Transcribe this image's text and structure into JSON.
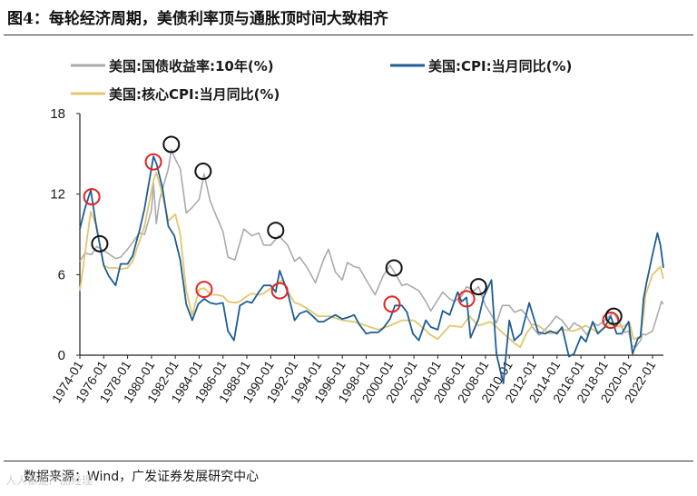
{
  "title": "图4：每轮经济周期，美债利率顶与通胀顶时间大致相齐",
  "source": "数据来源：Wind，广发证券发展研究中心",
  "watermark": "人人都是产品经理",
  "colors": {
    "yield": "#aaaaaa",
    "cpi": "#1f5d95",
    "core": "#e3c66e",
    "red_circle": "#e4231f",
    "black_circle": "#111111"
  },
  "chart_data": {
    "type": "line",
    "title": "",
    "xlabel": "",
    "ylabel": "",
    "ylim": [
      0,
      18
    ],
    "yticks": [
      0,
      6,
      12,
      18
    ],
    "xlim": [
      "1974-01",
      "2022-12"
    ],
    "xticks": [
      "1974-01",
      "1976-01",
      "1978-01",
      "1980-01",
      "1982-01",
      "1984-01",
      "1986-01",
      "1988-01",
      "1990-01",
      "1992-01",
      "1994-01",
      "1996-01",
      "1998-01",
      "2000-01",
      "2002-01",
      "2004-01",
      "2006-01",
      "2008-01",
      "2010-01",
      "2012-01",
      "2014-01",
      "2016-01",
      "2018-01",
      "2020-01",
      "2022-01"
    ],
    "grid": false,
    "legend_position": "top",
    "series": [
      {
        "name": "美国:国债收益率:10年(%)",
        "key": "yield",
        "x": [
          "1974-01",
          "1974-06",
          "1975-01",
          "1975-06",
          "1976-01",
          "1977-01",
          "1977-06",
          "1978-01",
          "1978-06",
          "1979-01",
          "1979-06",
          "1980-01",
          "1980-03",
          "1980-06",
          "1980-09",
          "1981-01",
          "1981-06",
          "1981-09",
          "1982-01",
          "1982-06",
          "1982-12",
          "1983-06",
          "1984-01",
          "1984-06",
          "1984-12",
          "1985-06",
          "1986-01",
          "1986-06",
          "1987-01",
          "1987-06",
          "1987-10",
          "1988-06",
          "1989-01",
          "1989-06",
          "1990-01",
          "1990-09",
          "1991-06",
          "1992-01",
          "1992-06",
          "1993-01",
          "1993-10",
          "1994-06",
          "1994-11",
          "1995-06",
          "1996-01",
          "1996-06",
          "1997-01",
          "1997-06",
          "1998-01",
          "1998-10",
          "1999-06",
          "2000-01",
          "2000-06",
          "2001-01",
          "2001-06",
          "2002-01",
          "2002-06",
          "2003-01",
          "2003-06",
          "2004-01",
          "2004-06",
          "2005-01",
          "2005-06",
          "2006-01",
          "2006-06",
          "2007-01",
          "2007-06",
          "2008-01",
          "2008-12",
          "2009-06",
          "2010-01",
          "2010-06",
          "2011-01",
          "2011-06",
          "2012-01",
          "2012-07",
          "2013-01",
          "2013-06",
          "2013-12",
          "2014-06",
          "2015-01",
          "2015-06",
          "2016-01",
          "2016-07",
          "2017-01",
          "2017-06",
          "2018-01",
          "2018-10",
          "2019-06",
          "2019-09",
          "2020-01",
          "2020-04",
          "2020-08",
          "2021-01",
          "2021-03",
          "2021-06",
          "2022-01",
          "2022-06",
          "2022-10",
          "2022-12"
        ],
        "y": [
          7.0,
          7.6,
          7.5,
          8.1,
          7.8,
          7.2,
          7.3,
          7.9,
          8.4,
          9.1,
          9.0,
          10.8,
          12.8,
          9.8,
          11.5,
          12.6,
          13.9,
          15.3,
          14.6,
          13.9,
          10.6,
          11.0,
          11.6,
          13.5,
          11.5,
          10.4,
          9.2,
          7.3,
          7.1,
          8.4,
          9.4,
          8.9,
          9.1,
          8.2,
          8.2,
          8.9,
          8.2,
          7.0,
          7.3,
          6.6,
          5.4,
          7.1,
          7.9,
          6.2,
          5.6,
          6.9,
          6.6,
          6.5,
          5.6,
          4.5,
          5.9,
          6.7,
          6.1,
          5.2,
          5.3,
          5.0,
          4.8,
          4.0,
          3.3,
          4.1,
          4.7,
          4.2,
          4.0,
          4.4,
          5.1,
          4.8,
          5.1,
          3.7,
          2.4,
          3.7,
          3.7,
          3.2,
          3.4,
          3.0,
          2.0,
          1.5,
          1.9,
          2.3,
          2.9,
          2.6,
          1.9,
          2.4,
          2.1,
          1.5,
          2.4,
          2.2,
          2.6,
          3.2,
          2.1,
          1.7,
          1.8,
          0.7,
          0.6,
          1.1,
          1.6,
          1.5,
          1.8,
          3.0,
          4.0,
          3.8
        ]
      },
      {
        "name": "美国:CPI:当月同比(%)",
        "key": "cpi",
        "x": [
          "1974-01",
          "1974-06",
          "1974-12",
          "1975-06",
          "1976-01",
          "1976-06",
          "1977-01",
          "1977-06",
          "1978-01",
          "1978-06",
          "1979-01",
          "1979-06",
          "1980-03",
          "1980-06",
          "1980-12",
          "1981-06",
          "1981-12",
          "1982-06",
          "1982-12",
          "1983-06",
          "1983-12",
          "1984-06",
          "1984-12",
          "1985-06",
          "1986-01",
          "1986-06",
          "1986-12",
          "1987-06",
          "1988-01",
          "1988-06",
          "1989-01",
          "1989-06",
          "1990-01",
          "1990-06",
          "1990-10",
          "1991-06",
          "1992-01",
          "1992-06",
          "1993-01",
          "1993-06",
          "1994-01",
          "1994-06",
          "1995-01",
          "1995-06",
          "1996-01",
          "1996-06",
          "1997-01",
          "1997-06",
          "1998-01",
          "1998-06",
          "1999-01",
          "1999-06",
          "2000-01",
          "2000-06",
          "2001-01",
          "2001-06",
          "2001-12",
          "2002-06",
          "2003-01",
          "2003-06",
          "2004-01",
          "2004-06",
          "2005-01",
          "2005-09",
          "2006-01",
          "2006-06",
          "2006-10",
          "2007-06",
          "2007-11",
          "2008-07",
          "2008-12",
          "2009-07",
          "2010-01",
          "2010-06",
          "2011-01",
          "2011-09",
          "2012-06",
          "2013-01",
          "2013-06",
          "2014-01",
          "2014-06",
          "2015-01",
          "2015-06",
          "2016-01",
          "2016-06",
          "2017-01",
          "2017-06",
          "2018-01",
          "2018-07",
          "2019-01",
          "2019-06",
          "2020-01",
          "2020-05",
          "2020-10",
          "2021-01",
          "2021-04",
          "2021-07",
          "2022-01",
          "2022-06",
          "2022-09",
          "2022-12"
        ],
        "y": [
          9.4,
          10.9,
          12.3,
          9.4,
          6.7,
          5.9,
          5.2,
          6.8,
          6.8,
          7.4,
          9.3,
          10.9,
          14.8,
          14.3,
          12.5,
          9.6,
          8.9,
          7.1,
          3.8,
          2.6,
          3.8,
          4.2,
          3.9,
          3.8,
          3.9,
          1.8,
          1.1,
          3.7,
          4.0,
          3.9,
          4.7,
          5.2,
          5.2,
          4.7,
          6.3,
          4.7,
          2.6,
          3.1,
          3.3,
          3.0,
          2.5,
          2.5,
          2.8,
          3.0,
          2.7,
          2.8,
          3.0,
          2.3,
          1.6,
          1.7,
          1.7,
          2.0,
          2.7,
          3.7,
          3.7,
          3.2,
          1.6,
          1.1,
          2.6,
          2.1,
          1.9,
          3.3,
          3.0,
          4.7,
          4.0,
          4.3,
          1.3,
          2.7,
          4.3,
          5.6,
          0.1,
          -2.1,
          2.6,
          1.1,
          1.6,
          3.9,
          1.7,
          1.6,
          1.8,
          1.6,
          2.1,
          -0.1,
          0.1,
          1.4,
          1.0,
          2.5,
          1.6,
          2.1,
          2.9,
          1.6,
          1.6,
          2.5,
          0.1,
          1.2,
          1.4,
          4.2,
          5.4,
          7.5,
          9.1,
          8.2,
          6.5
        ]
      },
      {
        "name": "美国:核心CPI:当月同比(%)",
        "key": "core",
        "x": [
          "1974-01",
          "1974-12",
          "1975-06",
          "1976-01",
          "1976-06",
          "1977-01",
          "1977-06",
          "1978-01",
          "1978-06",
          "1979-01",
          "1979-06",
          "1980-03",
          "1980-06",
          "1980-12",
          "1981-06",
          "1982-01",
          "1982-06",
          "1982-12",
          "1983-06",
          "1984-01",
          "1984-06",
          "1985-01",
          "1985-06",
          "1986-01",
          "1986-06",
          "1987-01",
          "1987-06",
          "1988-01",
          "1988-06",
          "1989-01",
          "1989-06",
          "1990-01",
          "1990-06",
          "1991-01",
          "1991-06",
          "1992-01",
          "1992-06",
          "1993-01",
          "1994-01",
          "1995-01",
          "1996-01",
          "1997-01",
          "1998-01",
          "1999-01",
          "2000-01",
          "2001-01",
          "2002-01",
          "2002-06",
          "2003-06",
          "2004-01",
          "2005-01",
          "2006-01",
          "2006-09",
          "2007-06",
          "2008-06",
          "2009-06",
          "2010-06",
          "2010-12",
          "2011-06",
          "2012-01",
          "2012-06",
          "2013-06",
          "2014-06",
          "2015-06",
          "2016-06",
          "2017-06",
          "2018-06",
          "2019-06",
          "2020-02",
          "2020-06",
          "2021-01",
          "2021-04",
          "2021-06",
          "2022-01",
          "2022-09",
          "2022-12"
        ],
        "y": [
          4.8,
          10.7,
          9.6,
          6.7,
          6.5,
          6.5,
          6.4,
          6.5,
          7.0,
          8.5,
          9.6,
          13.0,
          13.6,
          12.0,
          10.0,
          10.5,
          9.0,
          4.8,
          3.0,
          4.9,
          5.0,
          4.5,
          4.5,
          4.4,
          4.0,
          3.9,
          4.0,
          4.4,
          4.6,
          4.5,
          4.6,
          5.0,
          5.2,
          5.6,
          4.8,
          3.9,
          3.8,
          3.5,
          2.9,
          2.9,
          2.6,
          2.5,
          2.2,
          1.9,
          2.2,
          2.6,
          2.6,
          2.3,
          1.5,
          1.2,
          2.2,
          2.1,
          2.9,
          2.2,
          2.5,
          1.7,
          0.9,
          0.6,
          1.6,
          2.3,
          2.2,
          1.6,
          1.9,
          1.8,
          2.2,
          1.7,
          2.3,
          2.1,
          2.4,
          1.2,
          1.4,
          3.0,
          4.5,
          6.0,
          6.6,
          5.7
        ]
      }
    ],
    "annotations": {
      "red_circles": [
        [
          "1975-01",
          11.8
        ],
        [
          "1980-03",
          14.4
        ],
        [
          "1984-06",
          4.9
        ],
        [
          "1990-10",
          4.8
        ],
        [
          "2000-03",
          3.8
        ],
        [
          "2006-06",
          4.2
        ],
        [
          "2018-07",
          2.6
        ]
      ],
      "black_circles": [
        [
          "1975-09",
          8.3
        ],
        [
          "1981-09",
          15.7
        ],
        [
          "1984-05",
          13.7
        ],
        [
          "1990-06",
          9.3
        ],
        [
          "2000-05",
          6.5
        ],
        [
          "2007-06",
          5.1
        ],
        [
          "2018-10",
          2.9
        ]
      ]
    }
  }
}
